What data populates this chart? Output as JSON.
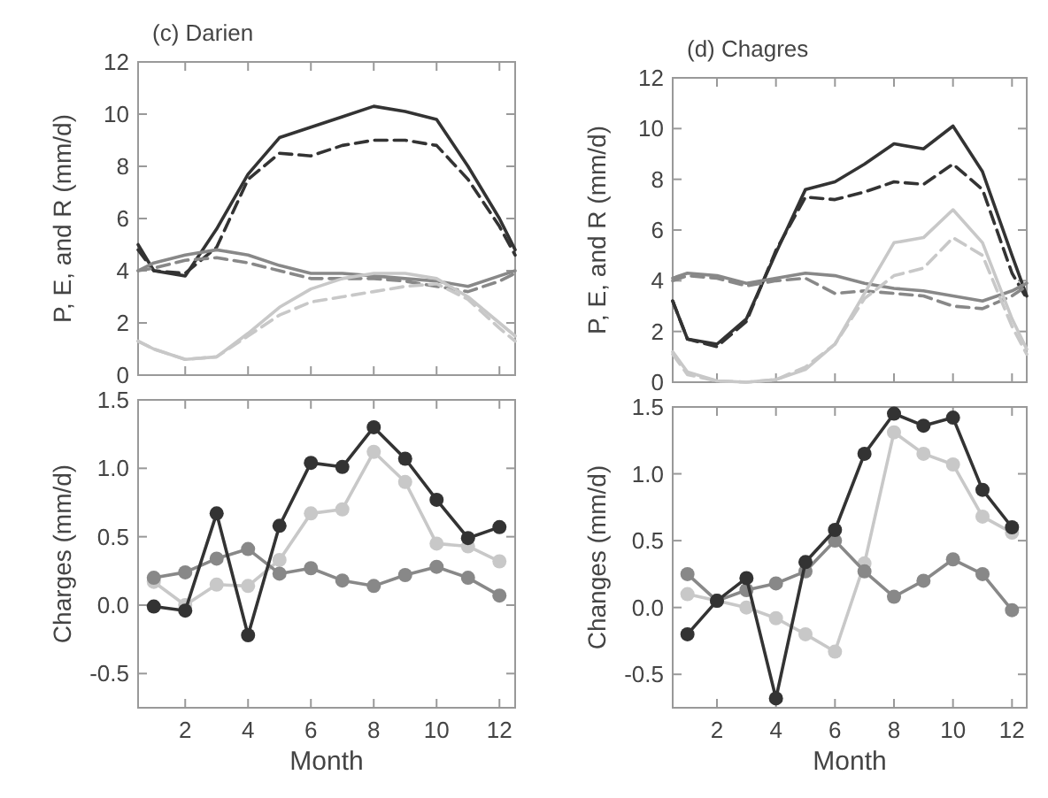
{
  "chart_data": [
    {
      "type": "line",
      "title": "(c) Darien",
      "ylabel": "P, E, and R (mm/d)",
      "xlim": [
        0.5,
        12.5
      ],
      "xticks": [
        {
          "value": 2,
          "label": null
        },
        {
          "value": 4,
          "label": null
        },
        {
          "value": 6,
          "label": null
        },
        {
          "value": 8,
          "label": null
        },
        {
          "value": 10,
          "label": null
        },
        {
          "value": 12,
          "label": null
        }
      ],
      "ylim": [
        0,
        12
      ],
      "yticks": [
        0,
        2,
        4,
        6,
        8,
        10,
        12
      ],
      "tick_labels": "y",
      "x": [
        0.5,
        1,
        2,
        3,
        4,
        5,
        6,
        7,
        8,
        9,
        10,
        11,
        12,
        12.5
      ],
      "series": [
        {
          "color": "#333333",
          "line_style": "solid",
          "values": [
            5.0,
            4.0,
            3.8,
            5.6,
            7.7,
            9.1,
            9.5,
            9.9,
            10.3,
            10.1,
            9.8,
            8.0,
            6.0,
            4.8
          ]
        },
        {
          "color": "#333333",
          "line_style": "dashed",
          "values": [
            4.8,
            4.0,
            3.9,
            4.9,
            7.5,
            8.5,
            8.4,
            8.8,
            9.0,
            9.0,
            8.8,
            7.5,
            5.7,
            4.6
          ]
        },
        {
          "color": "#888888",
          "line_style": "solid",
          "values": [
            4.0,
            4.3,
            4.6,
            4.8,
            4.6,
            4.2,
            3.9,
            3.9,
            3.8,
            3.7,
            3.6,
            3.4,
            3.8,
            4.0
          ]
        },
        {
          "color": "#888888",
          "line_style": "dashed",
          "values": [
            4.0,
            4.1,
            4.4,
            4.5,
            4.3,
            4.0,
            3.7,
            3.7,
            3.7,
            3.6,
            3.4,
            3.2,
            3.6,
            3.9
          ]
        },
        {
          "color": "#c8c8c8",
          "line_style": "solid",
          "values": [
            1.3,
            1.0,
            0.6,
            0.7,
            1.6,
            2.6,
            3.3,
            3.7,
            3.9,
            3.9,
            3.7,
            3.0,
            2.0,
            1.5
          ]
        },
        {
          "color": "#c8c8c8",
          "line_style": "dashed",
          "values": [
            1.3,
            1.0,
            0.6,
            0.7,
            1.5,
            2.3,
            2.8,
            3.0,
            3.2,
            3.4,
            3.5,
            2.9,
            1.8,
            1.3
          ]
        }
      ]
    },
    {
      "type": "line",
      "title": "(d) Chagres",
      "ylabel": "P, E, and R (mm/d)",
      "xlim": [
        0.5,
        12.5
      ],
      "xticks": [
        {
          "value": 2,
          "label": null
        },
        {
          "value": 4,
          "label": null
        },
        {
          "value": 6,
          "label": null
        },
        {
          "value": 8,
          "label": null
        },
        {
          "value": 10,
          "label": null
        },
        {
          "value": 12,
          "label": null
        }
      ],
      "ylim": [
        0,
        12
      ],
      "yticks": [
        0,
        2,
        4,
        6,
        8,
        10,
        12
      ],
      "tick_labels": "y",
      "x": [
        0.5,
        1,
        2,
        3,
        4,
        5,
        6,
        7,
        8,
        9,
        10,
        11,
        12,
        12.5
      ],
      "series": [
        {
          "color": "#333333",
          "line_style": "solid",
          "values": [
            3.2,
            1.7,
            1.5,
            2.5,
            5.1,
            7.6,
            7.9,
            8.6,
            9.4,
            9.2,
            10.1,
            8.3,
            5.0,
            3.4
          ]
        },
        {
          "color": "#333333",
          "line_style": "dashed",
          "values": [
            3.2,
            1.7,
            1.4,
            2.4,
            5.2,
            7.3,
            7.2,
            7.5,
            7.9,
            7.8,
            8.6,
            7.6,
            4.3,
            3.3
          ]
        },
        {
          "color": "#888888",
          "line_style": "solid",
          "values": [
            4.1,
            4.3,
            4.2,
            3.9,
            4.1,
            4.3,
            4.2,
            3.9,
            3.7,
            3.6,
            3.4,
            3.2,
            3.6,
            3.9
          ]
        },
        {
          "color": "#888888",
          "line_style": "dashed",
          "values": [
            4.0,
            4.2,
            4.1,
            3.8,
            4.0,
            4.1,
            3.5,
            3.6,
            3.5,
            3.4,
            3.0,
            2.9,
            3.4,
            3.8
          ]
        },
        {
          "color": "#c8c8c8",
          "line_style": "solid",
          "values": [
            1.2,
            0.4,
            0.05,
            0.0,
            0.1,
            0.5,
            1.5,
            3.5,
            5.5,
            5.7,
            6.8,
            5.5,
            2.5,
            1.3
          ]
        },
        {
          "color": "#c8c8c8",
          "line_style": "dashed",
          "values": [
            1.1,
            0.3,
            0.05,
            0.0,
            0.1,
            0.6,
            1.5,
            3.3,
            4.2,
            4.5,
            5.7,
            5.0,
            2.2,
            1.1
          ]
        }
      ]
    },
    {
      "type": "line",
      "xlabel": "Month",
      "ylabel": "Charges (mm/d)",
      "marker": "circle",
      "xlim": [
        0.5,
        12.5
      ],
      "xticks": [
        2,
        4,
        6,
        8,
        10,
        12
      ],
      "ylim": [
        -0.75,
        1.5
      ],
      "yticks": [
        {
          "value": -0.5,
          "label": "-0.5"
        },
        {
          "value": 0,
          "label": "0.0"
        },
        {
          "value": 0.5,
          "label": "0.5"
        },
        {
          "value": 1,
          "label": "1.0"
        },
        {
          "value": 1.5,
          "label": "1.5"
        }
      ],
      "x": [
        1,
        2,
        3,
        4,
        5,
        6,
        7,
        8,
        9,
        10,
        11,
        12
      ],
      "series": [
        {
          "color": "#c8c8c8",
          "values": [
            0.17,
            0.0,
            0.15,
            0.14,
            0.33,
            0.67,
            0.7,
            1.12,
            0.9,
            0.45,
            0.43,
            0.32
          ]
        },
        {
          "color": "#888888",
          "values": [
            0.2,
            0.24,
            0.34,
            0.41,
            0.23,
            0.27,
            0.18,
            0.14,
            0.22,
            0.28,
            0.2,
            0.07
          ]
        },
        {
          "color": "#333333",
          "values": [
            -0.01,
            -0.04,
            0.67,
            -0.22,
            0.58,
            1.04,
            1.01,
            1.3,
            1.07,
            0.77,
            0.49,
            0.57
          ]
        }
      ]
    },
    {
      "type": "line",
      "xlabel": "Month",
      "ylabel": "Changes (mm/d)",
      "marker": "circle",
      "xlim": [
        0.5,
        12.5
      ],
      "xticks": [
        2,
        4,
        6,
        8,
        10,
        12
      ],
      "ylim": [
        -0.75,
        1.5
      ],
      "yticks": [
        {
          "value": -0.5,
          "label": "-0.5"
        },
        {
          "value": 0,
          "label": "0.0"
        },
        {
          "value": 0.5,
          "label": "0.5"
        },
        {
          "value": 1,
          "label": "1.0"
        },
        {
          "value": 1.5,
          "label": "1.5"
        }
      ],
      "x": [
        1,
        2,
        3,
        4,
        5,
        6,
        7,
        8,
        9,
        10,
        11,
        12
      ],
      "series": [
        {
          "color": "#c8c8c8",
          "values": [
            0.1,
            0.05,
            0.0,
            -0.08,
            -0.2,
            -0.33,
            0.33,
            1.31,
            1.15,
            1.07,
            0.68,
            0.56
          ]
        },
        {
          "color": "#888888",
          "values": [
            0.25,
            0.05,
            0.13,
            0.18,
            0.27,
            0.5,
            0.27,
            0.08,
            0.2,
            0.36,
            0.25,
            -0.02
          ]
        },
        {
          "color": "#333333",
          "values": [
            -0.2,
            0.05,
            0.22,
            -0.68,
            0.34,
            0.58,
            1.15,
            1.45,
            1.36,
            1.42,
            0.88,
            0.6
          ]
        }
      ]
    }
  ]
}
